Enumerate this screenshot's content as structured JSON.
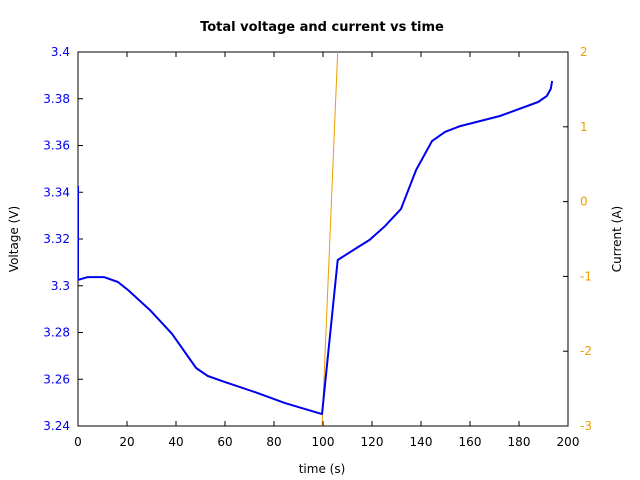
{
  "chart_data": {
    "type": "line",
    "title": "Total voltage and current vs time",
    "xlabel": "time (s)",
    "ylabel": "Voltage (V)",
    "y2label": "Current (A)",
    "xlim": [
      0,
      200
    ],
    "ylim": [
      3.24,
      3.4
    ],
    "y2lim": [
      -3,
      2
    ],
    "grid": false,
    "legend": null,
    "x_ticks": [
      "0",
      "20",
      "40",
      "60",
      "80",
      "100",
      "120",
      "140",
      "160",
      "180",
      "200"
    ],
    "y_ticks": [
      "3.24",
      "3.26",
      "3.28",
      "3.3",
      "3.32",
      "3.34",
      "3.36",
      "3.38",
      "3.4"
    ],
    "y2_ticks": [
      "-3",
      "-2",
      "-1",
      "0",
      "1",
      "2"
    ],
    "colors": {
      "voltage": "#0000ee",
      "current": "#e8a000",
      "left_axis_ticks": "#0000ee",
      "right_axis_ticks": "#e8a000",
      "axes": "#000000"
    },
    "series": [
      {
        "name": "Voltage (V)",
        "axis": "left",
        "color": "#0000ee",
        "x": [
          0,
          0,
          4,
          10.6,
          16.3,
          20.4,
          29.4,
          38.4,
          48.2,
          53,
          60,
          72.2,
          84.5,
          99.6,
          106,
          113,
          119,
          125.3,
          131.8,
          138,
          144.5,
          149.8,
          156,
          172.2,
          187.8,
          191.4,
          193,
          193.5
        ],
        "values": [
          3.3427,
          3.3025,
          3.3037,
          3.3037,
          3.3016,
          3.2982,
          3.2896,
          3.2794,
          3.2648,
          3.2614,
          3.2588,
          3.2545,
          3.2498,
          3.2451,
          3.311,
          3.3157,
          3.3196,
          3.3255,
          3.3328,
          3.3495,
          3.3619,
          3.3658,
          3.3683,
          3.3726,
          3.3786,
          3.3812,
          3.3842,
          3.3876
        ]
      },
      {
        "name": "Current (A)",
        "axis": "right",
        "color": "#e8a000",
        "x": [
          99.6,
          106
        ],
        "values": [
          -3,
          2
        ]
      }
    ]
  }
}
